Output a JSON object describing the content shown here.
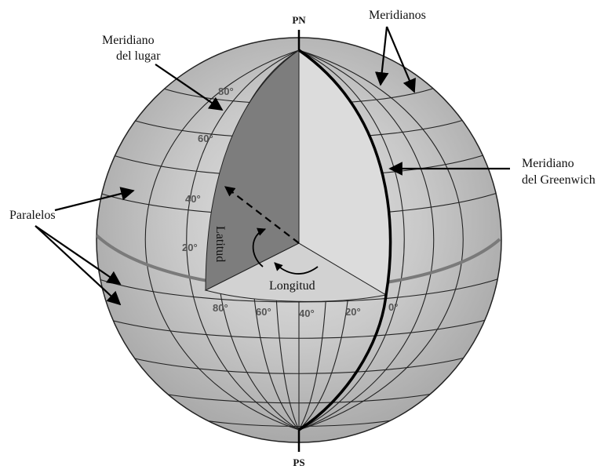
{
  "poles": {
    "north": "PN",
    "south": "PS"
  },
  "labels": {
    "meridianos": "Meridianos",
    "meridiano_lugar_1": "Meridiano",
    "meridiano_lugar_2": "del lugar",
    "meridiano_greenwich_1": "Meridiano",
    "meridiano_greenwich_2": "del Greenwich",
    "paralelos": "Paralelos",
    "latitud": "Latitud",
    "longitud": "Longitud"
  },
  "latitude_ticks": [
    "80°",
    "60°",
    "40°",
    "20°"
  ],
  "longitude_ticks": [
    "80°",
    "60°",
    "40°",
    "20°",
    "0°"
  ]
}
